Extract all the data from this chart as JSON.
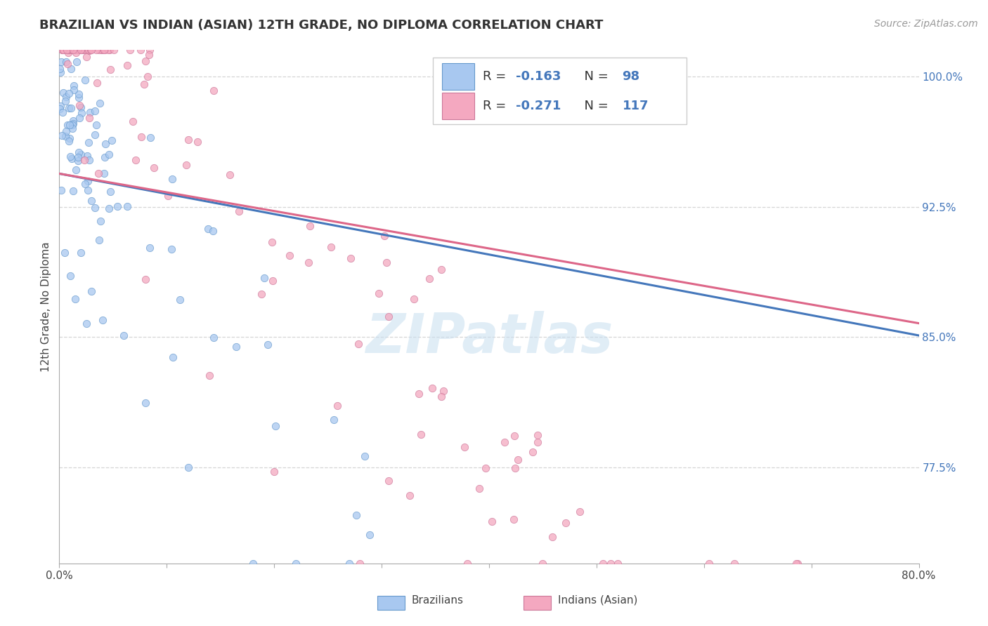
{
  "title": "BRAZILIAN VS INDIAN (ASIAN) 12TH GRADE, NO DIPLOMA CORRELATION CHART",
  "source": "Source: ZipAtlas.com",
  "ylabel": "12th Grade, No Diploma",
  "xmin": 0.0,
  "xmax": 0.8,
  "ymin": 0.72,
  "ymax": 1.015,
  "ytick_positions": [
    0.775,
    0.85,
    0.925,
    1.0
  ],
  "ytick_labels": [
    "77.5%",
    "85.0%",
    "92.5%",
    "100.0%"
  ],
  "xtick_positions": [
    0.0,
    0.1,
    0.2,
    0.3,
    0.4,
    0.5,
    0.6,
    0.7,
    0.8
  ],
  "xtick_labels": [
    "0.0%",
    "",
    "",
    "",
    "",
    "",
    "",
    "",
    "80.0%"
  ],
  "grid_yticks": [
    0.775,
    0.85,
    0.925,
    1.0
  ],
  "R_brazilian": -0.163,
  "N_brazilian": 98,
  "R_indian": -0.271,
  "N_indian": 117,
  "color_brazilian": "#A8C8F0",
  "color_indian": "#F4A8C0",
  "edge_color_brazilian": "#6699CC",
  "edge_color_indian": "#CC7799",
  "line_color_brazilian": "#4477BB",
  "line_color_indian": "#DD6688",
  "braz_line_y0": 0.944,
  "braz_line_y1": 0.851,
  "ind_line_y0": 0.944,
  "ind_line_y1": 0.858,
  "ytick_color": "#4477BB",
  "title_fontsize": 13,
  "axis_label_fontsize": 11,
  "tick_fontsize": 11,
  "source_fontsize": 10,
  "legend_fontsize": 13,
  "watermark_text": "ZIPatlas",
  "watermark_color": "#C8DFF0",
  "legend_labels_bottom": [
    "Brazilians",
    "Indians (Asian)"
  ],
  "grid_color": "#CCCCCC",
  "background_color": "#FFFFFF"
}
